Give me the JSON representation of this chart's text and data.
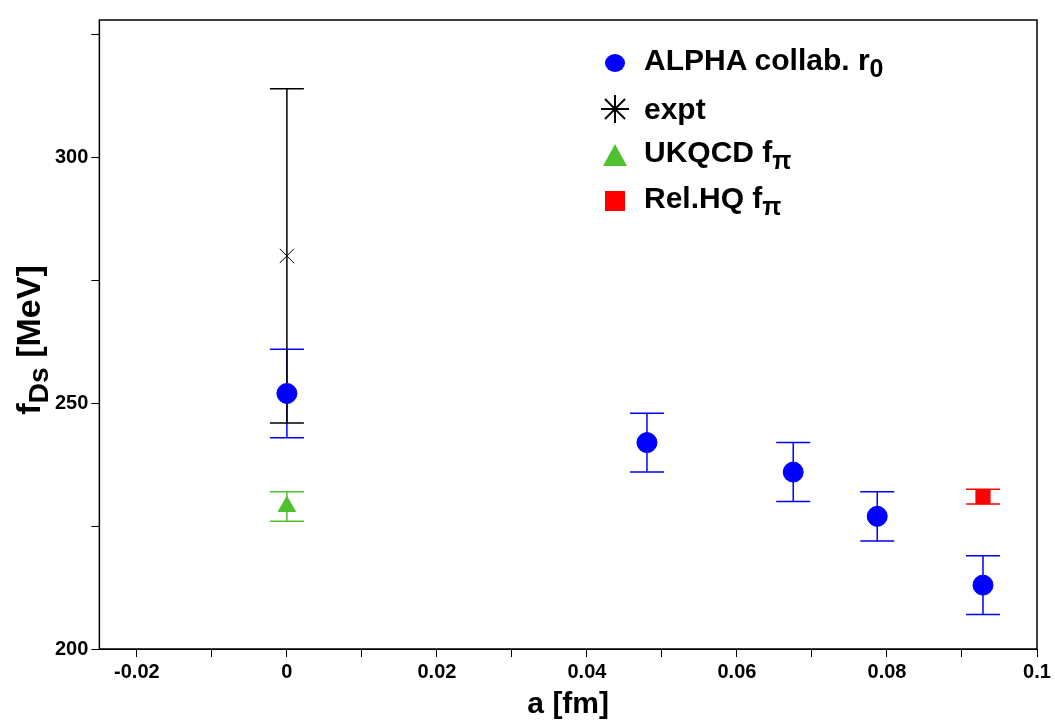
{
  "chart_data": {
    "type": "scatter",
    "xlabel": "a [fm]",
    "ylabel": "f$_{Ds}$ [MeV]",
    "xlim": [
      -0.025,
      0.1
    ],
    "xticks": [
      -0.02,
      {
        "value": -0.01,
        "label": null
      },
      0,
      {
        "value": 0.01,
        "label": null
      },
      0.02,
      {
        "value": 0.03,
        "label": null
      },
      0.04,
      {
        "value": 0.05,
        "label": null
      },
      0.06,
      {
        "value": 0.07,
        "label": null
      },
      0.08,
      {
        "value": 0.09,
        "label": null
      },
      0.1
    ],
    "ylim": [
      200,
      328
    ],
    "yticks": [
      200,
      {
        "value": 225,
        "label": null
      },
      250,
      {
        "value": 275,
        "label": null
      },
      300,
      {
        "value": 325,
        "label": null
      }
    ],
    "grid": false,
    "legend": "top right",
    "series": [
      {
        "name": "ALPHA collab. r$_{0}$",
        "color": "#0000ff",
        "marker": "circle",
        "x": [
          0,
          0.048,
          0.0675,
          0.0787,
          0.0928
        ],
        "values": [
          252,
          242,
          236,
          227,
          213
        ],
        "errors": [
          9,
          6,
          6,
          5,
          6
        ]
      },
      {
        "name": "expt",
        "color": "#000000",
        "marker": "cross",
        "x": [
          0
        ],
        "values": [
          280
        ],
        "errors": [
          34
        ]
      },
      {
        "name": "UKQCD f$_{π}$",
        "color": "#50c030",
        "marker": "triangle",
        "x": [
          0
        ],
        "values": [
          229
        ],
        "errors": [
          3
        ]
      },
      {
        "name": "Rel.HQ f$_{π}$",
        "color": "#ff0000",
        "marker": "square",
        "x": [
          0.0928
        ],
        "values": [
          231
        ],
        "errors": [
          1.5
        ]
      }
    ]
  }
}
